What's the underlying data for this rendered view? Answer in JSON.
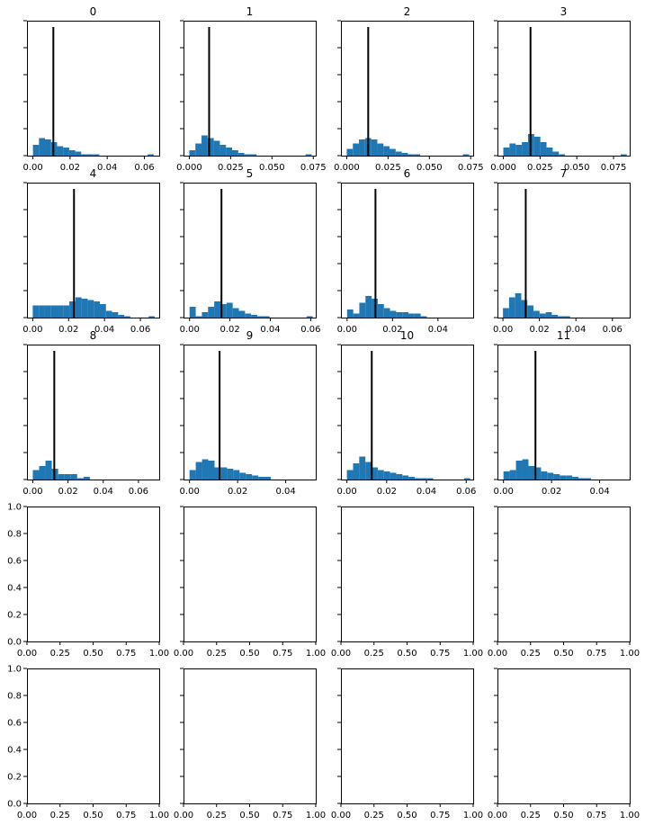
{
  "chart_data": {
    "type": "histogram-grid",
    "rows": 5,
    "cols": 4,
    "bar_color": "#1f77b4",
    "marker_color": "#000000",
    "panels": [
      {
        "title": "0",
        "xlim": [
          -0.0032,
          0.068
        ],
        "xticks": [
          "0.00",
          "0.02",
          "0.04",
          "0.06"
        ],
        "xtick_values": [
          0,
          0.02,
          0.04,
          0.06
        ],
        "bin_start": 0.0,
        "bin_width": 0.00325,
        "counts": [
          8,
          13,
          12,
          10,
          7,
          6,
          4,
          3,
          1,
          1,
          1,
          0,
          0,
          0,
          0,
          0,
          0,
          0,
          0,
          1
        ],
        "marker_x": 0.011,
        "ylim": [
          0,
          100
        ]
      },
      {
        "title": "1",
        "xlim": [
          -0.0035,
          0.0765
        ],
        "xticks": [
          "0.000",
          "0.025",
          "0.050",
          "0.075"
        ],
        "xtick_values": [
          0,
          0.025,
          0.05,
          0.075
        ],
        "bin_start": 0.0,
        "bin_width": 0.0037,
        "counts": [
          4,
          9,
          15,
          13,
          11,
          8,
          6,
          4,
          2,
          1,
          1,
          0,
          0,
          0,
          0,
          0,
          0,
          0,
          0,
          1
        ],
        "marker_x": 0.012,
        "ylim": [
          0,
          100
        ]
      },
      {
        "title": "2",
        "xlim": [
          -0.0035,
          0.0765
        ],
        "xticks": [
          "0.000",
          "0.025",
          "0.050",
          "0.075"
        ],
        "xtick_values": [
          0,
          0.025,
          0.05,
          0.075
        ],
        "bin_start": 0.0,
        "bin_width": 0.0037,
        "counts": [
          5,
          9,
          12,
          13,
          12,
          9,
          7,
          5,
          3,
          2,
          1,
          1,
          0,
          0,
          0,
          0,
          0,
          0,
          0,
          1
        ],
        "marker_x": 0.013,
        "ylim": [
          0,
          100
        ]
      },
      {
        "title": "3",
        "xlim": [
          -0.004,
          0.086
        ],
        "xticks": [
          "0.000",
          "0.025",
          "0.050",
          "0.075"
        ],
        "xtick_values": [
          0,
          0.025,
          0.05,
          0.075
        ],
        "bin_start": 0.0,
        "bin_width": 0.0042,
        "counts": [
          6,
          9,
          8,
          10,
          16,
          14,
          10,
          6,
          3,
          1,
          0,
          0,
          0,
          0,
          0,
          0,
          0,
          0,
          0,
          1
        ],
        "marker_x": 0.0185,
        "ylim": [
          0,
          100
        ]
      },
      {
        "title": "4",
        "xlim": [
          -0.0032,
          0.0705
        ],
        "xticks": [
          "0.00",
          "0.02",
          "0.04",
          "0.06"
        ],
        "xtick_values": [
          0,
          0.02,
          0.04,
          0.06
        ],
        "bin_start": 0.0,
        "bin_width": 0.0034,
        "counts": [
          9,
          9,
          9,
          9,
          9,
          9,
          12,
          15,
          14,
          13,
          12,
          10,
          5,
          4,
          2,
          1,
          0,
          0,
          0,
          1
        ],
        "marker_x": 0.023,
        "ylim": [
          0,
          100
        ]
      },
      {
        "title": "5",
        "xlim": [
          -0.003,
          0.0625
        ],
        "xticks": [
          "0.00",
          "0.02",
          "0.04",
          "0.06"
        ],
        "xtick_values": [
          0,
          0.02,
          0.04,
          0.06
        ],
        "bin_start": 0.0,
        "bin_width": 0.00305,
        "counts": [
          8,
          1,
          4,
          8,
          12,
          10,
          11,
          7,
          5,
          3,
          2,
          1,
          1,
          0,
          0,
          0,
          0,
          0,
          0,
          1
        ],
        "marker_x": 0.0158,
        "ylim": [
          0,
          100
        ]
      },
      {
        "title": "6",
        "xlim": [
          -0.0027,
          0.0555
        ],
        "xticks": [
          "0.00",
          "0.02",
          "0.04"
        ],
        "xtick_values": [
          0,
          0.02,
          0.04
        ],
        "bin_start": 0.0,
        "bin_width": 0.0027,
        "counts": [
          6,
          3,
          11,
          16,
          14,
          10,
          7,
          5,
          4,
          4,
          3,
          3,
          1,
          0,
          0,
          0,
          0,
          0,
          0,
          0
        ],
        "marker_x": 0.0125,
        "ylim": [
          0,
          100
        ]
      },
      {
        "title": "7",
        "xlim": [
          -0.003,
          0.0695
        ],
        "xticks": [
          "0.00",
          "0.02",
          "0.04",
          "0.06"
        ],
        "xtick_values": [
          0,
          0.02,
          0.04,
          0.06
        ],
        "bin_start": 0.0,
        "bin_width": 0.00335,
        "counts": [
          7,
          15,
          18,
          13,
          9,
          5,
          3,
          4,
          2,
          1,
          1,
          0,
          0,
          0,
          0,
          0,
          0,
          0,
          0,
          0
        ],
        "marker_x": 0.0125,
        "ylim": [
          0,
          100
        ]
      },
      {
        "title": "8",
        "xlim": [
          -0.0033,
          0.0718
        ],
        "xticks": [
          "0.00",
          "0.02",
          "0.04",
          "0.06"
        ],
        "xtick_values": [
          0,
          0.02,
          0.04,
          0.06
        ],
        "bin_start": 0.0,
        "bin_width": 0.0036,
        "counts": [
          7,
          10,
          14,
          8,
          4,
          4,
          4,
          1,
          2,
          0,
          0,
          0,
          0,
          0,
          0,
          0,
          0,
          0,
          0,
          0
        ],
        "marker_x": 0.0122,
        "ylim": [
          0,
          100
        ]
      },
      {
        "title": "9",
        "xlim": [
          -0.0025,
          0.0525
        ],
        "xticks": [
          "0.00",
          "0.02",
          "0.04"
        ],
        "xtick_values": [
          0,
          0.02,
          0.04
        ],
        "bin_start": 0.0,
        "bin_width": 0.0026,
        "counts": [
          7,
          13,
          15,
          14,
          9,
          9,
          8,
          7,
          5,
          4,
          3,
          2,
          2,
          0,
          0,
          0,
          0,
          0,
          0,
          0
        ],
        "marker_x": 0.0125,
        "ylim": [
          0,
          100
        ]
      },
      {
        "title": "10",
        "xlim": [
          -0.003,
          0.0635
        ],
        "xticks": [
          "0.00",
          "0.02",
          "0.04",
          "0.06"
        ],
        "xtick_values": [
          0,
          0.02,
          0.04,
          0.06
        ],
        "bin_start": 0.0,
        "bin_width": 0.0031,
        "counts": [
          7,
          12,
          17,
          13,
          9,
          7,
          6,
          5,
          4,
          3,
          2,
          1,
          1,
          1,
          0,
          0,
          0,
          0,
          0,
          1
        ],
        "marker_x": 0.0125,
        "ylim": [
          0,
          100
        ]
      },
      {
        "title": "11",
        "xlim": [
          -0.0025,
          0.0525
        ],
        "xticks": [
          "0.00",
          "0.02",
          "0.04"
        ],
        "xtick_values": [
          0,
          0.02,
          0.04
        ],
        "bin_start": 0.0,
        "bin_width": 0.0026,
        "counts": [
          6,
          7,
          14,
          15,
          10,
          9,
          6,
          5,
          4,
          3,
          3,
          2,
          1,
          1,
          0,
          0,
          0,
          0,
          0,
          0
        ],
        "marker_x": 0.0133,
        "ylim": [
          0,
          100
        ]
      },
      {
        "title": "",
        "xlim": [
          0,
          1
        ],
        "xticks": [
          "0.00",
          "0.25",
          "0.50",
          "0.75",
          "1.00"
        ],
        "xtick_values": [
          0,
          0.25,
          0.5,
          0.75,
          1
        ],
        "empty": true,
        "ylim": [
          0,
          1
        ],
        "yticks": [
          "0.0",
          "0.2",
          "0.4",
          "0.6",
          "0.8",
          "1.0"
        ],
        "ytick_values": [
          0,
          0.2,
          0.4,
          0.6,
          0.8,
          1
        ]
      },
      {
        "title": "",
        "xlim": [
          0,
          1
        ],
        "xticks": [
          "0.00",
          "0.25",
          "0.50",
          "0.75",
          "1.00"
        ],
        "xtick_values": [
          0,
          0.25,
          0.5,
          0.75,
          1
        ],
        "empty": true,
        "ylim": [
          0,
          1
        ]
      },
      {
        "title": "",
        "xlim": [
          0,
          1
        ],
        "xticks": [
          "0.00",
          "0.25",
          "0.50",
          "0.75",
          "1.00"
        ],
        "xtick_values": [
          0,
          0.25,
          0.5,
          0.75,
          1
        ],
        "empty": true,
        "ylim": [
          0,
          1
        ]
      },
      {
        "title": "",
        "xlim": [
          0,
          1
        ],
        "xticks": [
          "0.00",
          "0.25",
          "0.50",
          "0.75",
          "1.00"
        ],
        "xtick_values": [
          0,
          0.25,
          0.5,
          0.75,
          1
        ],
        "empty": true,
        "ylim": [
          0,
          1
        ]
      },
      {
        "title": "",
        "xlim": [
          0,
          1
        ],
        "xticks": [
          "0.00",
          "0.25",
          "0.50",
          "0.75",
          "1.00"
        ],
        "xtick_values": [
          0,
          0.25,
          0.5,
          0.75,
          1
        ],
        "empty": true,
        "ylim": [
          0,
          1
        ],
        "yticks": [
          "0.0",
          "0.2",
          "0.4",
          "0.6",
          "0.8",
          "1.0"
        ],
        "ytick_values": [
          0,
          0.2,
          0.4,
          0.6,
          0.8,
          1
        ]
      },
      {
        "title": "",
        "xlim": [
          0,
          1
        ],
        "xticks": [
          "0.00",
          "0.25",
          "0.50",
          "0.75",
          "1.00"
        ],
        "xtick_values": [
          0,
          0.25,
          0.5,
          0.75,
          1
        ],
        "empty": true,
        "ylim": [
          0,
          1
        ]
      },
      {
        "title": "",
        "xlim": [
          0,
          1
        ],
        "xticks": [
          "0.00",
          "0.25",
          "0.50",
          "0.75",
          "1.00"
        ],
        "xtick_values": [
          0,
          0.25,
          0.5,
          0.75,
          1
        ],
        "empty": true,
        "ylim": [
          0,
          1
        ]
      },
      {
        "title": "",
        "xlim": [
          0,
          1
        ],
        "xticks": [
          "0.00",
          "0.25",
          "0.50",
          "0.75",
          "1.00"
        ],
        "xtick_values": [
          0,
          0.25,
          0.5,
          0.75,
          1
        ],
        "empty": true,
        "ylim": [
          0,
          1
        ]
      }
    ]
  }
}
